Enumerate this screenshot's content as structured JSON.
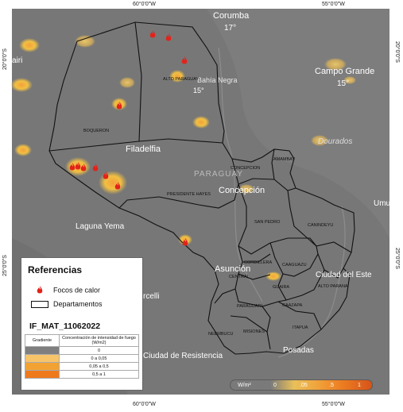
{
  "map": {
    "coords": {
      "top_left": "60°0'0\"W",
      "top_right": "55°0'0\"W",
      "bottom_left": "60°0'0\"W",
      "bottom_right": "55°0'0\"W",
      "left_top": "20°0'0\"S",
      "left_bottom": "25°0'0\"S",
      "right_top": "20°0'0\"S",
      "right_bottom": "25°0'0\"S"
    },
    "cities": {
      "corumba": "Corumba",
      "corumba_temp": "17°",
      "campo_grande": "Campo Grande",
      "campo_grande_temp": "15°",
      "dourados": "Dourados",
      "filadelfia": "Filadelfia",
      "concepcion_city": "Concepción",
      "laguna_yema": "Laguna Yema",
      "asuncion": "Asunción",
      "ciudad_del_este": "Ciudad del Este",
      "resistencia": "Ciudad de Resistencia",
      "posadas": "Posadas",
      "umu": "Umu",
      "paraguay": "PARAGUAY",
      "bahia_negra": "Bahía Negra",
      "bahia_temp": "15°",
      "rcelli": "rcelli",
      "tairi": "airi"
    },
    "departments": {
      "alto_paraguay": "ALTO PARAGUAY",
      "boqueron": "BOQUERON",
      "presidente_hayes": "PRESIDENTE HAYES",
      "concepcion": "CONCEPCION",
      "amambay": "AMAMBAY",
      "san_pedro": "SAN PEDRO",
      "canindeyu": "CANINDEYU",
      "caaguazu": "CAAGUAZU",
      "cordillera": "CORDILLERA",
      "central": "CENTRAL",
      "guaira": "GUAIRA",
      "alto_parana": "ALTO PARANA",
      "paraguari": "PARAGUARI",
      "caazapa": "CAAZAPA",
      "neembucu": "NEEMBUCU",
      "misiones": "MISIONES",
      "itapua": "ITAPUA"
    },
    "fire_count": 13,
    "legend": {
      "title": "Referencias",
      "fires_label": "Focos de calor",
      "departments_label": "Departamentos",
      "map_id": "IF_MAT_11062022",
      "gradient_header": "Gradiente",
      "concentration_header": "Concentración de intensidad de fuego (W/m2)",
      "rows": [
        {
          "value": "0",
          "color": "#7f7f7f"
        },
        {
          "value": "0 a 0,05",
          "color": "#f7c46a"
        },
        {
          "value": "0,05 a 0,5",
          "color": "#f2a232"
        },
        {
          "value": "0,5 a 1",
          "color": "#ee7a1c"
        }
      ]
    },
    "scale": {
      "unit": "W/m²",
      "ticks": [
        "0",
        ".05",
        ".5",
        "1"
      ]
    },
    "colors": {
      "background": "#777777",
      "fire": "#e2231a",
      "hotspot": "#f1c043"
    }
  }
}
